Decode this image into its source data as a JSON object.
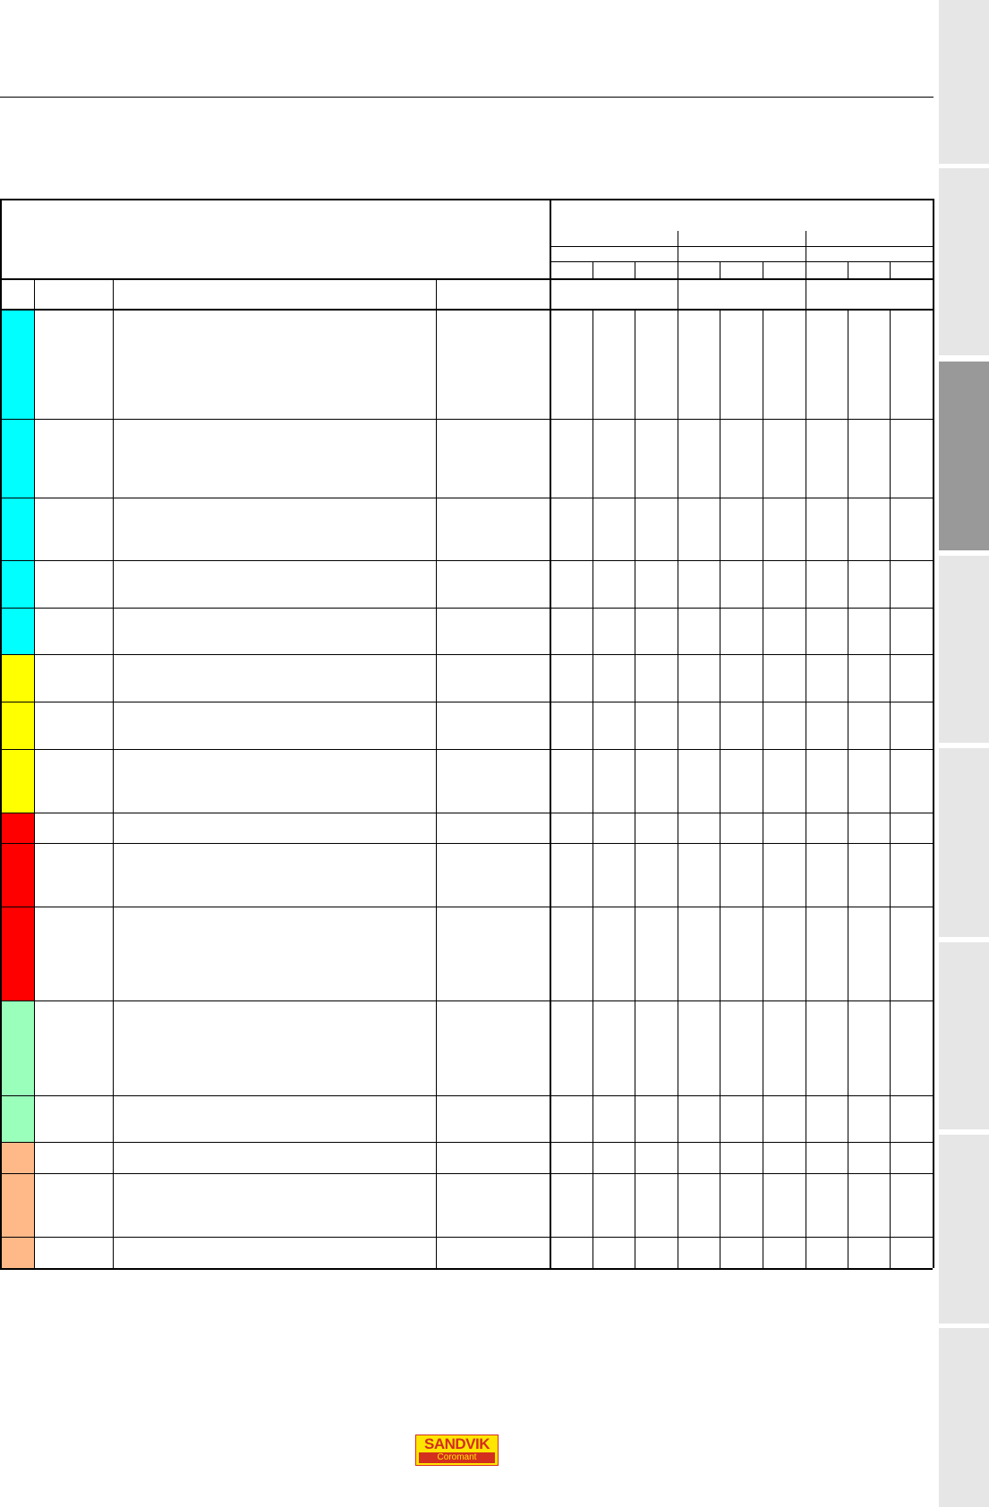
{
  "colors": {
    "group_1": "#00ffff",
    "group_2": "#ffff00",
    "group_3": "#ff0000",
    "group_4": "#99ffbb",
    "group_5": "#ffb888",
    "side_tab": "#e6e6e6",
    "side_tab_active": "#999999"
  },
  "logo": {
    "brand": "SANDVIK",
    "sub": "Coromant"
  },
  "side_tabs": {
    "count": 8,
    "active_index": 2
  },
  "table": {
    "body_rows": 16,
    "data_columns": 9
  }
}
